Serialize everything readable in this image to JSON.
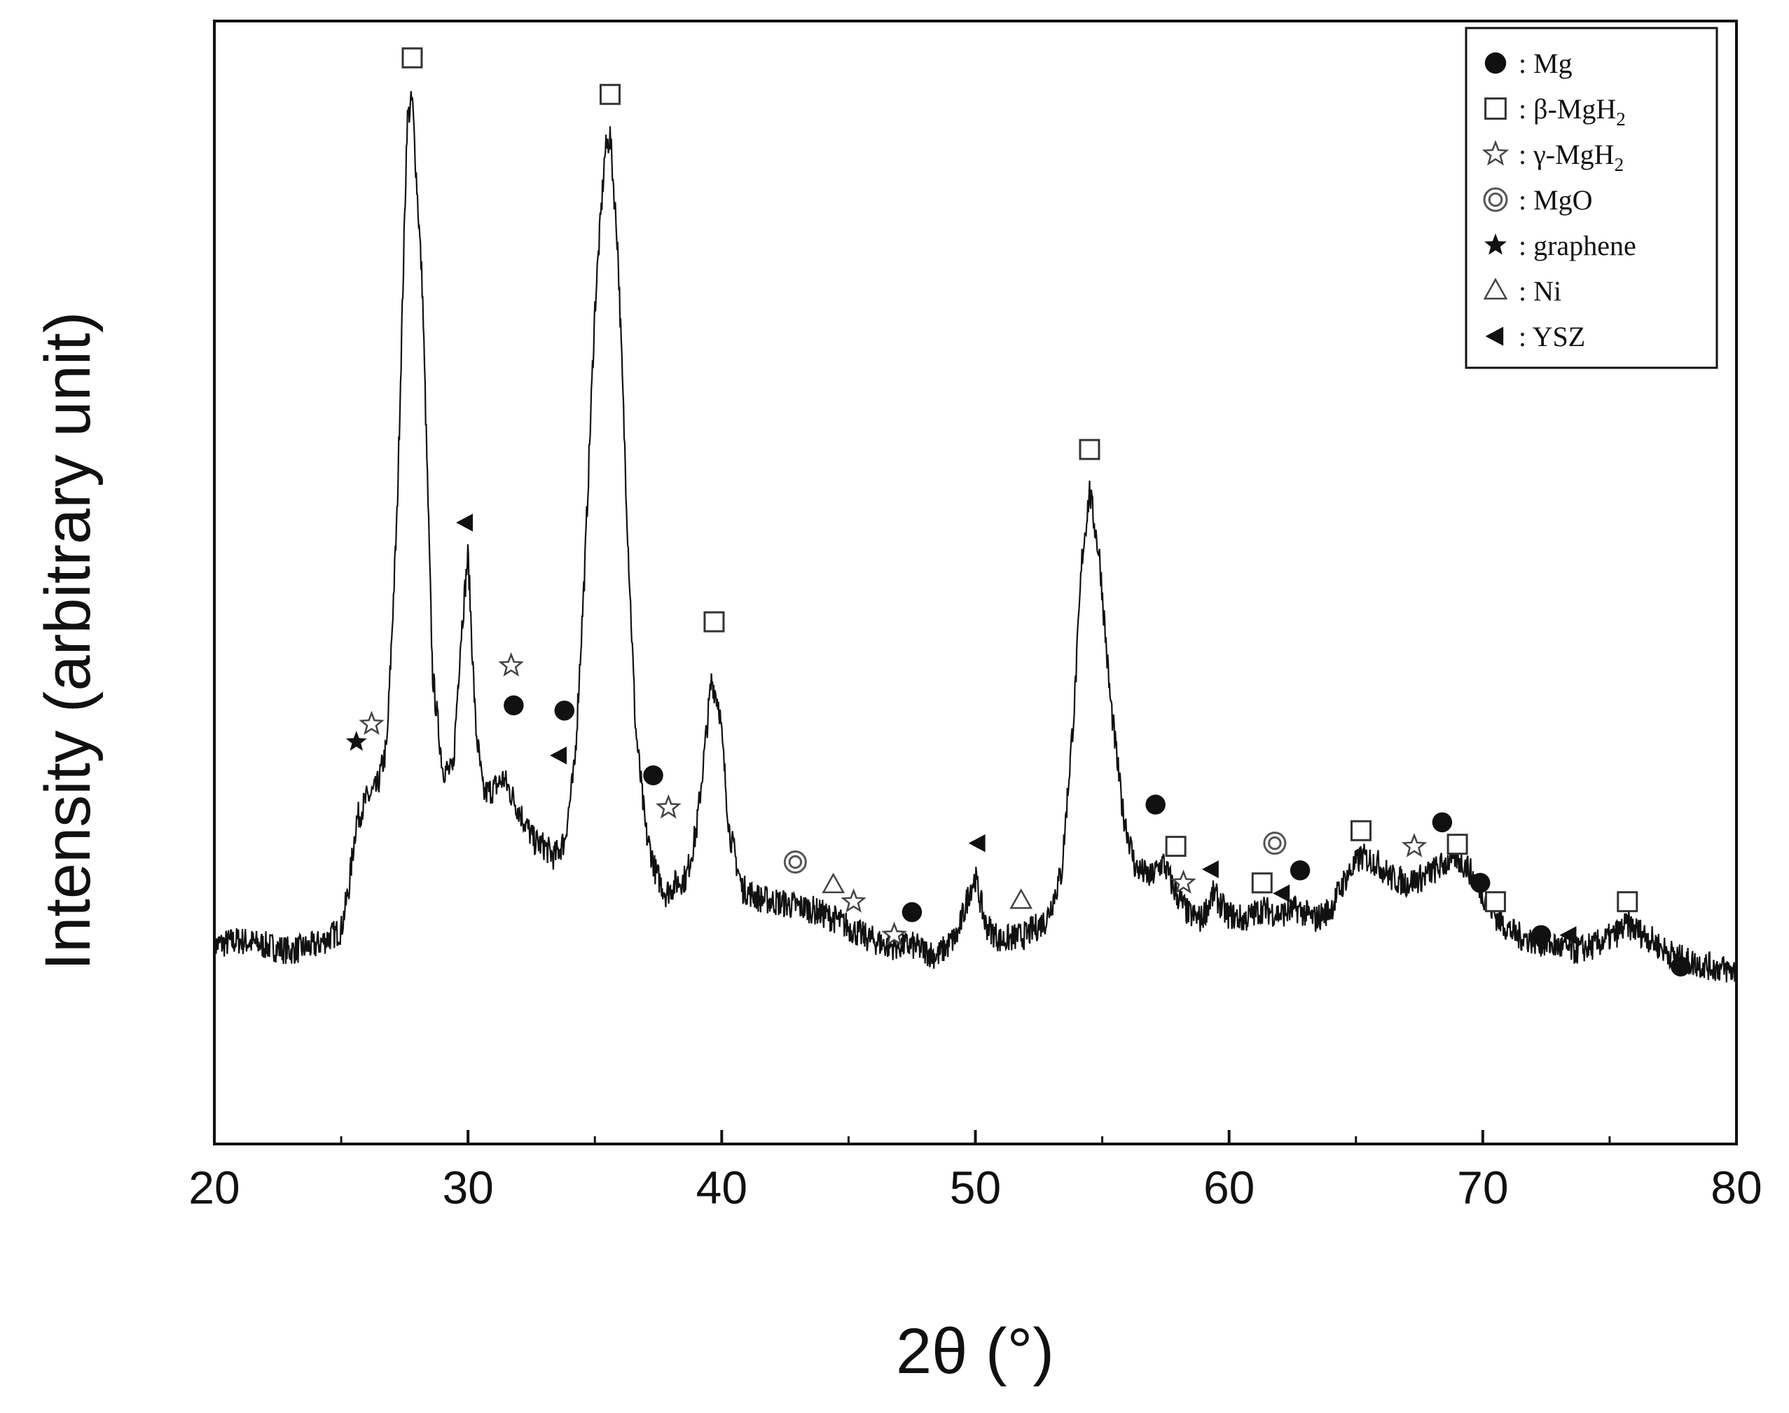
{
  "chart_data": {
    "type": "line",
    "title": "",
    "xlabel": "2θ (°)",
    "ylabel": "Intensity (arbitrary unit)",
    "xlim": [
      20,
      80
    ],
    "ylim": [
      0,
      1
    ],
    "y_ticks_labeled": false,
    "x_ticks": [
      20,
      30,
      40,
      50,
      60,
      70,
      80
    ],
    "grid": false,
    "legend_position": "top-right",
    "series": [
      {
        "profile": [
          [
            20,
            0.19
          ],
          [
            21,
            0.195
          ],
          [
            22,
            0.19
          ],
          [
            23,
            0.185
          ],
          [
            24,
            0.19
          ],
          [
            25,
            0.205
          ],
          [
            25.3,
            0.245
          ],
          [
            25.6,
            0.31
          ],
          [
            26.0,
            0.33
          ],
          [
            26.4,
            0.34
          ],
          [
            26.8,
            0.38
          ],
          [
            27.2,
            0.6
          ],
          [
            27.6,
            0.98
          ],
          [
            27.8,
            1.0
          ],
          [
            28.2,
            0.82
          ],
          [
            28.6,
            0.45
          ],
          [
            29.0,
            0.36
          ],
          [
            29.4,
            0.355
          ],
          [
            29.7,
            0.48
          ],
          [
            30.0,
            0.565
          ],
          [
            30.3,
            0.4
          ],
          [
            30.6,
            0.335
          ],
          [
            31.0,
            0.34
          ],
          [
            31.4,
            0.35
          ],
          [
            31.8,
            0.33
          ],
          [
            32.2,
            0.31
          ],
          [
            32.6,
            0.29
          ],
          [
            33.0,
            0.285
          ],
          [
            33.4,
            0.275
          ],
          [
            33.8,
            0.29
          ],
          [
            34.2,
            0.36
          ],
          [
            34.6,
            0.55
          ],
          [
            35.0,
            0.8
          ],
          [
            35.4,
            0.95
          ],
          [
            35.6,
            0.965
          ],
          [
            35.9,
            0.86
          ],
          [
            36.3,
            0.58
          ],
          [
            36.6,
            0.4
          ],
          [
            37.0,
            0.3
          ],
          [
            37.4,
            0.26
          ],
          [
            37.8,
            0.24
          ],
          [
            38.2,
            0.25
          ],
          [
            38.6,
            0.255
          ],
          [
            39.0,
            0.3
          ],
          [
            39.3,
            0.37
          ],
          [
            39.6,
            0.445
          ],
          [
            39.9,
            0.42
          ],
          [
            40.3,
            0.3
          ],
          [
            40.8,
            0.245
          ],
          [
            41.5,
            0.235
          ],
          [
            42.5,
            0.23
          ],
          [
            43.5,
            0.225
          ],
          [
            44.5,
            0.215
          ],
          [
            45.5,
            0.2
          ],
          [
            46.5,
            0.19
          ],
          [
            47.5,
            0.19
          ],
          [
            48.5,
            0.18
          ],
          [
            49.3,
            0.2
          ],
          [
            49.8,
            0.245
          ],
          [
            50.0,
            0.255
          ],
          [
            50.4,
            0.21
          ],
          [
            51.0,
            0.195
          ],
          [
            52.0,
            0.2
          ],
          [
            52.8,
            0.215
          ],
          [
            53.4,
            0.26
          ],
          [
            53.9,
            0.42
          ],
          [
            54.2,
            0.56
          ],
          [
            54.5,
            0.625
          ],
          [
            54.9,
            0.56
          ],
          [
            55.3,
            0.43
          ],
          [
            55.8,
            0.32
          ],
          [
            56.3,
            0.265
          ],
          [
            56.9,
            0.255
          ],
          [
            57.4,
            0.27
          ],
          [
            57.9,
            0.24
          ],
          [
            58.4,
            0.22
          ],
          [
            58.9,
            0.215
          ],
          [
            59.4,
            0.24
          ],
          [
            59.9,
            0.22
          ],
          [
            60.6,
            0.215
          ],
          [
            61.3,
            0.225
          ],
          [
            62.0,
            0.22
          ],
          [
            62.7,
            0.225
          ],
          [
            63.4,
            0.215
          ],
          [
            64.0,
            0.225
          ],
          [
            64.6,
            0.255
          ],
          [
            65.2,
            0.275
          ],
          [
            65.8,
            0.27
          ],
          [
            66.4,
            0.255
          ],
          [
            67.0,
            0.25
          ],
          [
            67.6,
            0.255
          ],
          [
            68.3,
            0.265
          ],
          [
            68.9,
            0.275
          ],
          [
            69.4,
            0.265
          ],
          [
            70.0,
            0.24
          ],
          [
            70.6,
            0.215
          ],
          [
            71.3,
            0.2
          ],
          [
            72.0,
            0.195
          ],
          [
            72.8,
            0.19
          ],
          [
            73.6,
            0.185
          ],
          [
            74.4,
            0.19
          ],
          [
            75.2,
            0.2
          ],
          [
            75.7,
            0.21
          ],
          [
            76.4,
            0.2
          ],
          [
            77.2,
            0.185
          ],
          [
            78.0,
            0.175
          ],
          [
            79.0,
            0.17
          ],
          [
            80.0,
            0.165
          ]
        ],
        "noise_amplitude": 0.014
      }
    ],
    "legend": [
      {
        "symbol": "filled-circle",
        "text": ": Mg"
      },
      {
        "symbol": "open-square",
        "text": ": β-MgH",
        "subscript": "2"
      },
      {
        "symbol": "open-star",
        "text": ": γ-MgH",
        "subscript": "2"
      },
      {
        "symbol": "double-circle",
        "text": ": MgO"
      },
      {
        "symbol": "filled-star",
        "text": ": graphene"
      },
      {
        "symbol": "open-triangle",
        "text": ": Ni"
      },
      {
        "symbol": "filled-left-triangle",
        "text": ": YSZ"
      }
    ],
    "peak_markers": [
      {
        "symbol": "open-square",
        "x": 27.8,
        "y": 1.04
      },
      {
        "symbol": "open-square",
        "x": 35.6,
        "y": 1.005
      },
      {
        "symbol": "open-square",
        "x": 39.7,
        "y": 0.5
      },
      {
        "symbol": "open-square",
        "x": 54.5,
        "y": 0.665
      },
      {
        "symbol": "open-square",
        "x": 57.9,
        "y": 0.285
      },
      {
        "symbol": "open-square",
        "x": 61.3,
        "y": 0.25
      },
      {
        "symbol": "open-square",
        "x": 65.2,
        "y": 0.3
      },
      {
        "symbol": "open-square",
        "x": 69.0,
        "y": 0.287
      },
      {
        "symbol": "open-square",
        "x": 70.5,
        "y": 0.232
      },
      {
        "symbol": "open-square",
        "x": 75.7,
        "y": 0.232
      },
      {
        "symbol": "filled-circle",
        "x": 31.8,
        "y": 0.42
      },
      {
        "symbol": "filled-circle",
        "x": 33.8,
        "y": 0.415
      },
      {
        "symbol": "filled-circle",
        "x": 37.3,
        "y": 0.353
      },
      {
        "symbol": "filled-circle",
        "x": 47.5,
        "y": 0.222
      },
      {
        "symbol": "filled-circle",
        "x": 57.1,
        "y": 0.325
      },
      {
        "symbol": "filled-circle",
        "x": 62.8,
        "y": 0.262
      },
      {
        "symbol": "filled-circle",
        "x": 68.4,
        "y": 0.308
      },
      {
        "symbol": "filled-circle",
        "x": 69.9,
        "y": 0.25
      },
      {
        "symbol": "filled-circle",
        "x": 72.3,
        "y": 0.2
      },
      {
        "symbol": "filled-circle",
        "x": 77.8,
        "y": 0.17
      },
      {
        "symbol": "open-star",
        "x": 26.2,
        "y": 0.402
      },
      {
        "symbol": "open-star",
        "x": 31.7,
        "y": 0.458
      },
      {
        "symbol": "open-star",
        "x": 37.9,
        "y": 0.322
      },
      {
        "symbol": "open-star",
        "x": 45.2,
        "y": 0.232
      },
      {
        "symbol": "open-star",
        "x": 46.8,
        "y": 0.2
      },
      {
        "symbol": "open-star",
        "x": 58.2,
        "y": 0.25
      },
      {
        "symbol": "open-star",
        "x": 67.3,
        "y": 0.285
      },
      {
        "symbol": "filled-star",
        "x": 25.6,
        "y": 0.385
      },
      {
        "symbol": "double-circle",
        "x": 42.9,
        "y": 0.27
      },
      {
        "symbol": "double-circle",
        "x": 61.8,
        "y": 0.288
      },
      {
        "symbol": "open-triangle",
        "x": 44.4,
        "y": 0.248
      },
      {
        "symbol": "open-triangle",
        "x": 51.8,
        "y": 0.233
      },
      {
        "symbol": "filled-left-triangle",
        "x": 29.9,
        "y": 0.595
      },
      {
        "symbol": "filled-left-triangle",
        "x": 33.6,
        "y": 0.372
      },
      {
        "symbol": "filled-left-triangle",
        "x": 50.1,
        "y": 0.288
      },
      {
        "symbol": "filled-left-triangle",
        "x": 59.3,
        "y": 0.263
      },
      {
        "symbol": "filled-left-triangle",
        "x": 62.1,
        "y": 0.24
      },
      {
        "symbol": "filled-left-triangle",
        "x": 73.4,
        "y": 0.2
      }
    ]
  }
}
